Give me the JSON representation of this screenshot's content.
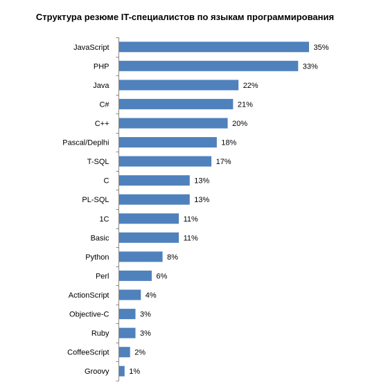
{
  "chart_data": {
    "type": "bar",
    "orientation": "horizontal",
    "title": "Структура резюме IT-специалистов по языкам программирования",
    "categories": [
      "JavaScript",
      "PHP",
      "Java",
      "C#",
      "C++",
      "Pascal/Deplhi",
      "T-SQL",
      "C",
      "PL-SQL",
      "1C",
      "Basic",
      "Python",
      "Perl",
      "ActionScript",
      "Objective-C",
      "Ruby",
      "CoffeeScript",
      "Groovy"
    ],
    "values": [
      35,
      33,
      22,
      21,
      20,
      18,
      17,
      13,
      13,
      11,
      11,
      8,
      6,
      4,
      3,
      3,
      2,
      1
    ],
    "value_labels": [
      "35%",
      "33%",
      "22%",
      "21%",
      "20%",
      "18%",
      "17%",
      "13%",
      "13%",
      "11%",
      "11%",
      "8%",
      "6%",
      "4%",
      "3%",
      "3%",
      "2%",
      "1%"
    ],
    "unit": "%",
    "xlabel": "",
    "ylabel": "",
    "xlim": [
      0,
      35
    ],
    "grid": false,
    "legend": "none",
    "bar_color": "#4f81bd",
    "axis_color": "#868686"
  }
}
